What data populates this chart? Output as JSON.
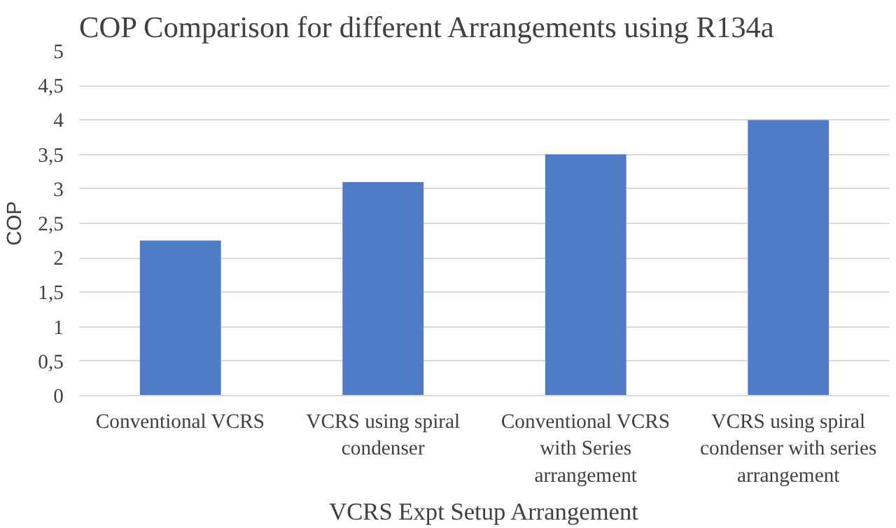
{
  "chart_data": {
    "type": "bar",
    "title": "COP Comparison for different Arrangements using R134a",
    "xlabel": "VCRS Expt Setup Arrangement",
    "ylabel": "COP",
    "categories": [
      "Conventional VCRS",
      "VCRS using spiral\ncondenser",
      "Conventional VCRS\nwith Series\narrangement",
      "VCRS using spiral\ncondenser with series\narrangement"
    ],
    "values": [
      2.25,
      3.1,
      3.5,
      4.0
    ],
    "color": "#4f7bc6",
    "ylim": [
      0,
      5
    ],
    "yticks": [
      {
        "value": 0,
        "label": "0"
      },
      {
        "value": 0.5,
        "label": "0,5"
      },
      {
        "value": 1,
        "label": "1"
      },
      {
        "value": 1.5,
        "label": "1,5"
      },
      {
        "value": 2,
        "label": "2"
      },
      {
        "value": 2.5,
        "label": "2,5"
      },
      {
        "value": 3,
        "label": "3"
      },
      {
        "value": 3.5,
        "label": "3,5"
      },
      {
        "value": 4,
        "label": "4"
      },
      {
        "value": 4.5,
        "label": "4,5"
      },
      {
        "value": 5,
        "label": "5"
      }
    ],
    "grid": "y",
    "legend": false
  }
}
